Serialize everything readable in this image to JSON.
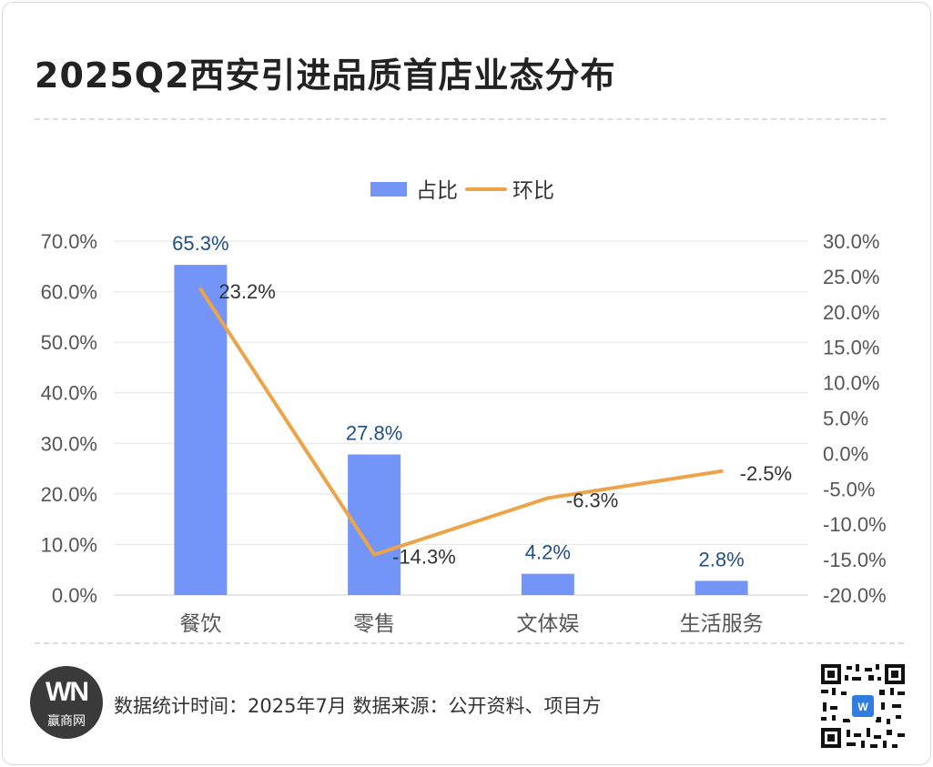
{
  "header": {
    "title": "2025Q2西安引进品质首店业态分布"
  },
  "footer": {
    "info": "数据统计时间：2025年7月 数据来源：公开资料、项目方",
    "logo_mark": "WN",
    "logo_name": "赢商网"
  },
  "colors": {
    "bar": "#7395f7",
    "line": "#eda348",
    "bar_label": "#1f4e8c",
    "line_label": "#333333"
  },
  "chart_data": {
    "type": "bar",
    "categories": [
      "餐饮",
      "零售",
      "文体娱",
      "生活服务"
    ],
    "series": [
      {
        "name": "占比",
        "type": "bar",
        "axis": "left",
        "values": [
          65.3,
          27.8,
          4.2,
          2.8
        ],
        "labels": [
          "65.3%",
          "27.8%",
          "4.2%",
          "2.8%"
        ]
      },
      {
        "name": "环比",
        "type": "line",
        "axis": "right",
        "values": [
          23.2,
          -14.3,
          -6.3,
          -2.5
        ],
        "labels": [
          "23.2%",
          "-14.3%",
          "-6.3%",
          "-2.5%"
        ]
      }
    ],
    "left_axis": {
      "ylim": [
        0,
        70
      ],
      "ticks": [
        "0.0%",
        "10.0%",
        "20.0%",
        "30.0%",
        "40.0%",
        "50.0%",
        "60.0%",
        "70.0%"
      ]
    },
    "right_axis": {
      "ylim": [
        -20,
        30
      ],
      "ticks": [
        "-20.0%",
        "-15.0%",
        "-10.0%",
        "-5.0%",
        "0.0%",
        "5.0%",
        "10.0%",
        "15.0%",
        "20.0%",
        "25.0%",
        "30.0%"
      ]
    },
    "legend": "top-center",
    "grid": true
  }
}
